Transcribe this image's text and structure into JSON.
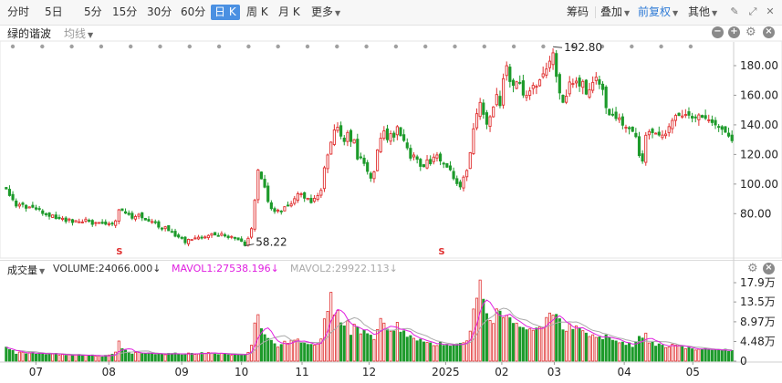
{
  "toolbar": {
    "periods": [
      "分时",
      "5日",
      "5分",
      "15分",
      "30分",
      "60分",
      "日 K",
      "周 K",
      "月 K",
      "更多"
    ],
    "active_period": "日 K",
    "tools": [
      "筹码",
      "叠加",
      "前复权",
      "其他"
    ],
    "active_tool": "前复权",
    "icons": [
      "chevron-down-icon",
      "pen-icon",
      "expand-icon"
    ]
  },
  "title": {
    "stock": "绿的谐波",
    "ma_label": "均线",
    "controls": [
      "minus-circle-icon",
      "plus-circle-icon",
      "gear-icon",
      "close-icon"
    ]
  },
  "volume_header": {
    "label": "成交量",
    "volume": "VOLUME:24066.000↓",
    "mavol1": "MAVOL1:27538.196↓",
    "mavol2": "MAVOL2:29922.113↓",
    "colors": {
      "volume": "#333333",
      "mavol1": "#e020e0",
      "mavol2": "#aaaaaa"
    }
  },
  "colors": {
    "up": "#e03030",
    "down": "#1c9a2a",
    "ma1": "#e020e0",
    "ma2": "#aaaaaa",
    "accent": "#4a90e2"
  },
  "chart_data": [
    {
      "type": "candlestick",
      "x_ticks": [
        "07",
        "08",
        "09",
        "10",
        "11",
        "12",
        "2025",
        "02",
        "03",
        "04",
        "05"
      ],
      "y_ticks": [
        80.0,
        100.0,
        120.0,
        140.0,
        160.0,
        180.0
      ],
      "y_tick_labels": [
        "80.00",
        "100.00",
        "120.00",
        "140.00",
        "160.00",
        "180.00"
      ],
      "ylim": [
        50,
        196
      ],
      "annotations": [
        {
          "label": "192.80",
          "value": 192.8
        },
        {
          "label": "58.22",
          "value": 58.22
        }
      ],
      "markers": [
        "S",
        "S"
      ],
      "close": [
        96.72,
        92.26,
        89.44,
        85.16,
        86.24,
        86.25,
        83.67,
        84.58,
        84.36,
        83.08,
        82.93,
        80.11,
        79.85,
        78.21,
        79.11,
        76.69,
        76.73,
        76.87,
        74.73,
        76.33,
        74.04,
        75.34,
        74.49,
        74.38,
        76.29,
        75.44,
        72.78,
        73.99,
        74.04,
        73.44,
        72.92,
        73.22,
        72.98,
        75.12,
        82.6,
        82.12,
        80.32,
        79.46,
        76.92,
        78.04,
        79.55,
        77.21,
        75.74,
        74.97,
        74.74,
        73.94,
        70.91,
        69.93,
        71.15,
        68.49,
        67.96,
        64.79,
        64.25,
        63.77,
        60.38,
        62.65,
        62.53,
        63.6,
        64.11,
        63.52,
        64.28,
        65.26,
        66.47,
        65.59,
        65.06,
        66.56,
        64.94,
        63.85,
        64.58,
        63.63,
        62.33,
        61.32,
        58.56,
        63.33,
        69.87,
        89.0,
        109.48,
        103.52,
        97.91,
        88.2,
        83.43,
        81.5,
        82.4,
        81.65,
        84.69,
        85.7,
        86.53,
        90.14,
        93.43,
        93.42,
        90.46,
        90.38,
        87.44,
        90.37,
        92.23,
        95.77,
        110.99,
        119.65,
        128.29,
        136.53,
        138.41,
        132.37,
        128.75,
        134.8,
        128.73,
        129.97,
        116.92,
        118.08,
        113.92,
        108.55,
        103.97,
        108.2,
        123.07,
        130.96,
        135.91,
        129.95,
        134.03,
        131.66,
        138.77,
        132.68,
        129.42,
        124.47,
        117.5,
        119.59,
        116.76,
        111.96,
        111.72,
        116.33,
        113.72,
        118.19,
        119.65,
        115.56,
        114.03,
        111.43,
        109.62,
        103.67,
        100.29,
        98.11,
        104.69,
        109.19,
        121.16,
        137.31,
        147.55,
        155.14,
        147.09,
        140.41,
        145.46,
        152.09,
        160.49,
        152.97,
        171.19,
        179.94,
        169.25,
        166.69,
        169.07,
        168.51,
        160.11,
        159.98,
        162.91,
        166.7,
        166.03,
        170.38,
        174.48,
        177.72,
        183.01,
        188.66,
        172.74,
        161.58,
        155.23,
        159.38,
        168.94,
        167.91,
        169.51,
        166.19,
        169.31,
        160.76,
        163.74,
        168.66,
        172.2,
        167.46,
        163.87,
        151.61,
        146.78,
        146.77,
        144.27,
        144.69,
        139.77,
        138.43,
        137.43,
        135.6,
        132.03,
        119.24,
        115.52,
        132.96,
        135.43,
        134.7,
        134.37,
        133.12,
        133.07,
        133.78,
        138.82,
        143.0,
        146.36,
        146.38,
        145.99,
        147.03,
        146.48,
        144.6,
        145.22,
        146.7,
        145.15,
        144.38,
        143.39,
        141.56,
        139.97,
        138.41,
        137.0,
        135.06,
        132.39,
        129.28
      ],
      "volume_axis": {
        "ticks": [
          0,
          4.48,
          8.97,
          13.5,
          17.9
        ],
        "tick_labels": [
          "0",
          "4.48万",
          "8.97万",
          "13.5万",
          "17.9万"
        ],
        "unit": "万"
      },
      "volume": [
        3.2,
        2.62,
        2.42,
        1.59,
        2.07,
        2.03,
        1.68,
        1.94,
        1.98,
        1.58,
        1.79,
        1.8,
        1.5,
        1.71,
        1.65,
        1.78,
        1.33,
        1.53,
        1.33,
        1.43,
        1.26,
        1.43,
        1.52,
        1.23,
        1.36,
        1.21,
        1.4,
        1.16,
        1.2,
        0.96,
        1.34,
        1.4,
        1.57,
        2.06,
        4.58,
        2.85,
        2.49,
        2.03,
        1.63,
        1.96,
        2.01,
        1.69,
        1.76,
        1.87,
        1.79,
        1.51,
        1.71,
        1.58,
        1.47,
        1.79,
        1.73,
        1.86,
        1.5,
        1.43,
        1.67,
        1.85,
        1.79,
        1.54,
        1.62,
        1.95,
        1.8,
        1.96,
        1.89,
        1.8,
        1.49,
        1.81,
        1.75,
        1.45,
        1.32,
        1.49,
        1.55,
        1.54,
        1.51,
        1.98,
        3.63,
        8.7,
        10.6,
        7.4,
        6.04,
        5.19,
        4.74,
        3.97,
        3.2,
        3.79,
        4.54,
        4.06,
        4.74,
        4.78,
        5.03,
        4.12,
        4.19,
        3.82,
        3.81,
        3.64,
        4.01,
        5.06,
        9.64,
        11.36,
        15.71,
        10.53,
        11.55,
        8.74,
        8.04,
        9.19,
        5.92,
        8.42,
        7.79,
        6.21,
        7.13,
        6.26,
        5.93,
        4.94,
        7.2,
        9.74,
        8.68,
        7.28,
        6.81,
        6.86,
        8.86,
        6.62,
        6.91,
        5.47,
        5.82,
        5.2,
        4.62,
        4.99,
        4.37,
        4.27,
        4.17,
        3.54,
        3.56,
        4.3,
        3.58,
        3.83,
        3.44,
        3.62,
        3.92,
        4.06,
        4.2,
        4.63,
        6.84,
        11.89,
        14.36,
        18.5,
        14.12,
        10.84,
        9.27,
        8.59,
        11.92,
        11.4,
        9.92,
        10.47,
        9.9,
        8.62,
        8.67,
        7.76,
        7.66,
        7.16,
        7.35,
        7.04,
        7.56,
        7.81,
        7.69,
        9.95,
        10.97,
        10.5,
        10.67,
        9.67,
        7.14,
        6.82,
        8.51,
        7.24,
        8.04,
        7.4,
        6.94,
        6.39,
        5.62,
        6.01,
        5.41,
        5.52,
        4.93,
        5.98,
        5.44,
        4.75,
        4.59,
        4.18,
        4.35,
        3.63,
        4.17,
        3.17,
        4.31,
        5.65,
        5.26,
        6.39,
        4.14,
        4.31,
        3.42,
        3.93,
        3.64,
        3.09,
        3.26,
        3.86,
        3.64,
        3.59,
        3.32,
        2.83,
        3.1,
        2.81,
        2.52,
        2.71,
        2.72,
        2.94,
        2.64,
        2.48,
        2.57,
        2.52,
        2.39,
        2.72,
        2.23,
        2.41
      ]
    }
  ]
}
